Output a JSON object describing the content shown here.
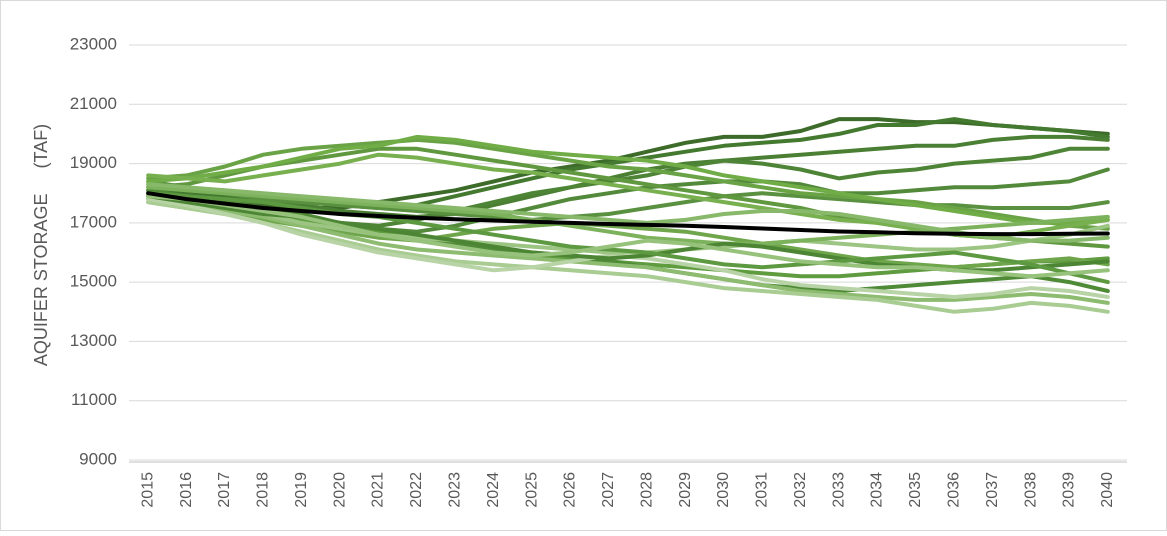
{
  "chart_data": {
    "type": "line",
    "y_label": "AQUIFER STORAGE     (TAF)",
    "categories": [
      "2015",
      "2016",
      "2017",
      "2018",
      "2019",
      "2020",
      "2021",
      "2022",
      "2023",
      "2024",
      "2025",
      "2026",
      "2027",
      "2028",
      "2029",
      "2030",
      "2031",
      "2032",
      "2033",
      "2034",
      "2035",
      "2036",
      "2037",
      "2038",
      "2039",
      "2040"
    ],
    "ylim": [
      9000,
      23000
    ],
    "yticks": [
      9000,
      11000,
      13000,
      15000,
      17000,
      19000,
      21000,
      23000
    ],
    "grid": true,
    "series": [
      {
        "color": "#3d6b2a",
        "values": [
          17900,
          17800,
          17700,
          17600,
          17500,
          17500,
          17700,
          17900,
          18100,
          18400,
          18700,
          18900,
          19100,
          19400,
          19700,
          19900,
          19900,
          20100,
          20500,
          20500,
          20400,
          20400,
          20300,
          20200,
          20100,
          20000
        ]
      },
      {
        "color": "#447a30",
        "values": [
          18100,
          18000,
          17900,
          17800,
          17700,
          17600,
          17500,
          17600,
          17900,
          18200,
          18500,
          18800,
          19000,
          19200,
          19400,
          19600,
          19700,
          19800,
          20000,
          20300,
          20300,
          20500,
          20300,
          20200,
          20100,
          19900
        ]
      },
      {
        "color": "#4a7f34",
        "values": [
          18300,
          18200,
          18000,
          17800,
          17600,
          17400,
          17300,
          17200,
          17300,
          17600,
          17900,
          18200,
          18500,
          18800,
          19000,
          19100,
          19200,
          19300,
          19400,
          19500,
          19600,
          19600,
          19800,
          19900,
          19900,
          19800
        ]
      },
      {
        "color": "#4e8436",
        "values": [
          17800,
          17600,
          17400,
          17200,
          17100,
          17000,
          16900,
          17100,
          17400,
          17700,
          18000,
          18200,
          18400,
          18600,
          18900,
          19100,
          19000,
          18800,
          18500,
          18700,
          18800,
          19000,
          19100,
          19200,
          19500,
          19500
        ]
      },
      {
        "color": "#52893a",
        "values": [
          18000,
          17800,
          17600,
          17400,
          17200,
          17000,
          16800,
          16700,
          16900,
          17200,
          17500,
          17800,
          18000,
          18200,
          18300,
          18400,
          18400,
          18300,
          18000,
          18000,
          18100,
          18200,
          18200,
          18300,
          18400,
          18800
        ]
      },
      {
        "color": "#5a9140",
        "values": [
          18400,
          18200,
          18000,
          17800,
          17700,
          17600,
          17500,
          17400,
          17300,
          17200,
          17100,
          17200,
          17300,
          17500,
          17700,
          17900,
          18000,
          17900,
          17800,
          17700,
          17600,
          17600,
          17500,
          17500,
          17500,
          17700
        ]
      },
      {
        "color": "#60983f",
        "values": [
          18200,
          18300,
          18600,
          18900,
          19100,
          19300,
          19500,
          19500,
          19300,
          19100,
          18900,
          18700,
          18500,
          18300,
          18100,
          17900,
          17700,
          17500,
          17200,
          17000,
          16800,
          16600,
          16500,
          16400,
          16300,
          16200
        ]
      },
      {
        "color": "#6aa346",
        "values": [
          18500,
          18600,
          18900,
          19300,
          19500,
          19600,
          19700,
          19800,
          19700,
          19500,
          19300,
          19100,
          18900,
          18800,
          18600,
          18400,
          18200,
          18000,
          17900,
          17800,
          17700,
          17500,
          17300,
          17100,
          16900,
          16800
        ]
      },
      {
        "color": "#70ad47",
        "values": [
          18400,
          18500,
          18700,
          18900,
          19200,
          19500,
          19600,
          19900,
          19800,
          19600,
          19400,
          19300,
          19200,
          19100,
          18900,
          18600,
          18400,
          18200,
          18000,
          17800,
          17600,
          17400,
          17200,
          17000,
          17000,
          17100
        ]
      },
      {
        "color": "#78b04f",
        "values": [
          18600,
          18500,
          18400,
          18600,
          18800,
          19000,
          19300,
          19200,
          19000,
          18800,
          18700,
          18500,
          18300,
          18100,
          17900,
          17700,
          17500,
          17300,
          17100,
          17000,
          16800,
          16600,
          16500,
          16700,
          16900,
          17100
        ]
      },
      {
        "color": "#5f9b3f",
        "values": [
          17900,
          17700,
          17500,
          17300,
          17100,
          16900,
          16700,
          16500,
          16300,
          16100,
          15900,
          15800,
          15700,
          15600,
          15500,
          15400,
          15300,
          15200,
          15200,
          15300,
          15400,
          15500,
          15600,
          15700,
          15700,
          15800
        ]
      },
      {
        "color": "#4f8a37",
        "values": [
          18100,
          17900,
          17700,
          17500,
          17300,
          17000,
          16800,
          16600,
          16300,
          16100,
          16000,
          15900,
          15700,
          15500,
          15300,
          15100,
          14900,
          14800,
          14700,
          14800,
          14900,
          15000,
          15100,
          15200,
          15000,
          14700
        ]
      },
      {
        "color": "#6fa64c",
        "values": [
          17700,
          17500,
          17300,
          17100,
          16900,
          16700,
          16500,
          16400,
          16600,
          16800,
          16900,
          17000,
          16900,
          16800,
          16700,
          16500,
          16300,
          16100,
          15900,
          15700,
          15600,
          15500,
          15600,
          15700,
          15800,
          15600
        ]
      },
      {
        "color": "#8dbb70",
        "values": [
          17800,
          17600,
          17400,
          17200,
          16900,
          16600,
          16300,
          16100,
          16000,
          15900,
          15800,
          15700,
          15600,
          15500,
          15300,
          15100,
          14900,
          14700,
          14600,
          14500,
          14400,
          14400,
          14500,
          14600,
          14500,
          14300
        ]
      },
      {
        "color": "#a9cc93",
        "values": [
          17700,
          17500,
          17300,
          17000,
          16700,
          16400,
          16100,
          15900,
          15700,
          15600,
          15500,
          15400,
          15300,
          15200,
          15000,
          14800,
          14700,
          14600,
          14500,
          14400,
          14200,
          14000,
          14100,
          14300,
          14200,
          14000
        ]
      },
      {
        "color": "#b8d4a6",
        "values": [
          17800,
          17600,
          17300,
          17000,
          16600,
          16300,
          16000,
          15800,
          15600,
          15400,
          15500,
          15700,
          15900,
          15800,
          15600,
          15400,
          15100,
          14900,
          14800,
          14700,
          14600,
          14500,
          14600,
          14800,
          14700,
          14500
        ]
      },
      {
        "color": "#9cc482",
        "values": [
          18000,
          17800,
          17600,
          17300,
          17000,
          16800,
          16600,
          16500,
          16400,
          16300,
          16200,
          16100,
          16000,
          16000,
          16100,
          16200,
          16300,
          16400,
          16300,
          16200,
          16100,
          16100,
          16200,
          16400,
          16600,
          16900
        ]
      },
      {
        "color": "#7db25c",
        "values": [
          18200,
          18100,
          18000,
          17900,
          17800,
          17700,
          17600,
          17500,
          17400,
          17300,
          17100,
          16900,
          16700,
          16500,
          16400,
          16300,
          16300,
          16400,
          16500,
          16600,
          16700,
          16800,
          16900,
          17000,
          17100,
          17200
        ]
      },
      {
        "color": "#88b96b",
        "values": [
          18300,
          18200,
          18100,
          18000,
          17900,
          17800,
          17700,
          17600,
          17500,
          17400,
          17300,
          17200,
          17100,
          17000,
          17100,
          17300,
          17400,
          17400,
          17300,
          17100,
          16900,
          16700,
          16500,
          16400,
          16400,
          16500
        ]
      },
      {
        "color": "#4c8534",
        "values": [
          17900,
          17700,
          17500,
          17300,
          17200,
          17000,
          16800,
          16600,
          16400,
          16200,
          16000,
          15900,
          15800,
          15900,
          16100,
          16300,
          16200,
          16000,
          15800,
          15600,
          15500,
          15400,
          15400,
          15500,
          15600,
          15700
        ]
      },
      {
        "color": "#5d9940",
        "values": [
          18000,
          17900,
          17800,
          17700,
          17500,
          17300,
          17200,
          17000,
          16800,
          16600,
          16400,
          16200,
          16100,
          16000,
          15800,
          15600,
          15500,
          15600,
          15700,
          15800,
          15900,
          16000,
          15800,
          15600,
          15300,
          15000
        ]
      },
      {
        "color": "#97c27c",
        "values": [
          17900,
          17800,
          17600,
          17400,
          17200,
          16900,
          16600,
          16400,
          16200,
          16000,
          15900,
          16000,
          16200,
          16400,
          16300,
          16100,
          15900,
          15700,
          15600,
          15500,
          15500,
          15400,
          15300,
          15200,
          15300,
          15400
        ]
      },
      {
        "color": "#000000",
        "values": [
          18000,
          17800,
          17650,
          17500,
          17400,
          17300,
          17230,
          17170,
          17120,
          17080,
          17040,
          17000,
          16960,
          16930,
          16900,
          16860,
          16810,
          16760,
          16710,
          16680,
          16650,
          16630,
          16620,
          16620,
          16630,
          16640
        ]
      }
    ]
  }
}
